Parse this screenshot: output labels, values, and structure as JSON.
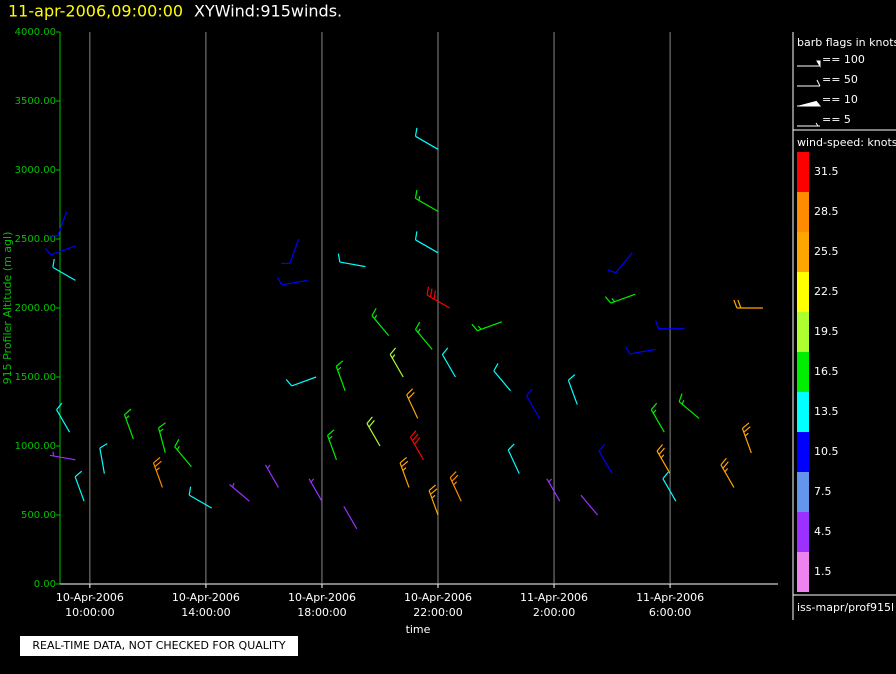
{
  "chart_data": {
    "type": "barb",
    "title_time": "11-apr-2006,09:00:00",
    "title": "XYWind:915winds.",
    "ylabel": "915 Profiler Altitude (m agl)",
    "xlabel": "time",
    "note": "REAL-TIME DATA, NOT CHECKED FOR QUALITY",
    "xlim": [
      8.97,
      33.72
    ],
    "xticks": [
      {
        "value": 10,
        "label": "10-Apr-2006 10:00:00"
      },
      {
        "value": 14,
        "label": "10-Apr-2006 14:00:00"
      },
      {
        "value": 18,
        "label": "10-Apr-2006 18:00:00"
      },
      {
        "value": 22,
        "label": "10-Apr-2006 22:00:00"
      },
      {
        "value": 26,
        "label": "11-Apr-2006 2:00:00"
      },
      {
        "value": 30,
        "label": "11-Apr-2006 6:00:00"
      }
    ],
    "ylim": [
      0,
      4000
    ],
    "yticks": [
      {
        "value": 0,
        "label": "0.00"
      },
      {
        "value": 500,
        "label": "500.00"
      },
      {
        "value": 1000,
        "label": "1000.00"
      },
      {
        "value": 1500,
        "label": "1500.00"
      },
      {
        "value": 2000,
        "label": "2000.00"
      },
      {
        "value": 2500,
        "label": "2500.00"
      },
      {
        "value": 3000,
        "label": "3000.00"
      },
      {
        "value": 3500,
        "label": "3500.00"
      },
      {
        "value": 4000,
        "label": "4000.00"
      }
    ],
    "grid": true,
    "flag_legend": {
      "title": "barb flags in knots",
      "items": [
        "== 100",
        "== 50",
        "== 10",
        "== 5"
      ]
    },
    "color_scale": {
      "title": "wind-speed: knots",
      "values": [
        31.5,
        28.5,
        25.5,
        22.5,
        19.5,
        16.5,
        13.5,
        10.5,
        7.5,
        4.5,
        1.5
      ],
      "colors": [
        "#ff0000",
        "#ff8c00",
        "#ffa500",
        "#ffff00",
        "#adff2f",
        "#00ee00",
        "#00ffff",
        "#0000ff",
        "#6495ed",
        "#9b30ff",
        "#ee82ee"
      ]
    },
    "source": "iss-mapr/prof915l",
    "barbs": {
      "x": [
        9.2,
        9.5,
        9.5,
        9.3,
        9.5,
        9.8,
        10.5,
        11.5,
        12.5,
        12.6,
        13.5,
        14.2,
        15.5,
        16.5,
        17.2,
        17.5,
        17.8,
        18,
        18.5,
        18.8,
        19.2,
        19.5,
        20,
        20.3,
        20.8,
        21,
        21.3,
        21.5,
        21.8,
        22,
        22,
        22,
        22,
        22.4,
        22.6,
        22.8,
        24.2,
        24.5,
        24.8,
        25.5,
        26.2,
        26.8,
        27.5,
        28,
        28.7,
        28.8,
        29.5,
        29.8,
        30,
        30.2,
        31,
        32.2,
        32.8,
        33.2,
        30.5
      ],
      "altitude": [
        2700,
        2450,
        2200,
        1100,
        900,
        600,
        800,
        1050,
        700,
        950,
        850,
        550,
        600,
        700,
        2500,
        2200,
        1500,
        600,
        900,
        1400,
        400,
        2300,
        1000,
        1800,
        1500,
        700,
        1200,
        900,
        1700,
        500,
        3150,
        2700,
        2400,
        2000,
        1500,
        600,
        1900,
        1400,
        800,
        1200,
        600,
        1300,
        500,
        800,
        2400,
        2100,
        1700,
        1100,
        800,
        600,
        1200,
        700,
        950,
        2000,
        1850
      ],
      "speed": [
        10,
        11,
        14,
        13,
        5,
        13,
        14,
        17,
        29,
        17,
        17,
        13,
        5,
        5,
        11,
        11,
        14,
        5,
        17,
        17,
        4,
        14,
        20,
        17,
        19,
        26,
        24,
        31,
        17,
        26,
        14,
        17,
        14,
        31,
        13,
        29,
        17,
        14,
        13,
        11,
        5,
        14,
        4,
        11,
        11,
        17,
        11,
        17,
        25,
        14,
        17,
        26,
        26,
        24,
        11
      ],
      "direction": [
        200,
        250,
        300,
        330,
        280,
        340,
        350,
        340,
        340,
        345,
        320,
        300,
        310,
        330,
        200,
        260,
        250,
        330,
        340,
        340,
        330,
        280,
        330,
        320,
        330,
        340,
        335,
        330,
        320,
        340,
        300,
        300,
        300,
        300,
        330,
        335,
        250,
        320,
        335,
        330,
        330,
        340,
        320,
        330,
        220,
        250,
        260,
        330,
        330,
        330,
        310,
        330,
        340,
        270,
        270
      ]
    }
  }
}
